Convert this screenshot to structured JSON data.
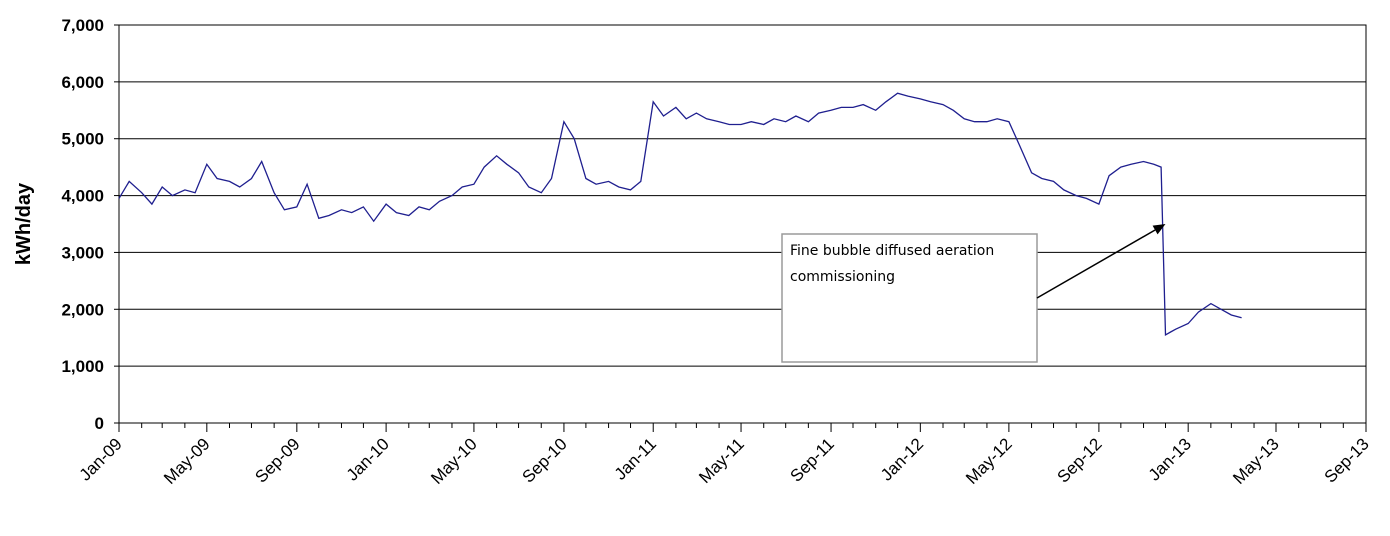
{
  "chart_data": {
    "type": "line",
    "title": "",
    "xlabel": "",
    "ylabel": "kWh/day",
    "ylim": [
      0,
      7000
    ],
    "xlim": [
      "2009-01-01",
      "2013-09-01"
    ],
    "y_ticks": [
      0,
      1000,
      2000,
      3000,
      4000,
      5000,
      6000,
      7000
    ],
    "y_tick_labels": [
      "0",
      "1,000",
      "2,000",
      "3,000",
      "4,000",
      "5,000",
      "6,000",
      "7,000"
    ],
    "x_ticks": [
      "2009-01-01",
      "2009-05-01",
      "2009-09-01",
      "2010-01-01",
      "2010-05-01",
      "2010-09-01",
      "2011-01-01",
      "2011-05-01",
      "2011-09-01",
      "2012-01-01",
      "2012-05-01",
      "2012-09-01",
      "2013-01-01",
      "2013-05-01",
      "2013-09-01"
    ],
    "x_tick_labels": [
      "Jan-09",
      "May-09",
      "Sep-09",
      "Jan-10",
      "May-10",
      "Sep-10",
      "Jan-11",
      "May-11",
      "Sep-11",
      "Jan-12",
      "May-12",
      "Sep-12",
      "Jan-13",
      "May-13",
      "Sep-13"
    ],
    "grid": "horizontal",
    "line_color": "#1f1f8f",
    "annotation": {
      "text_lines": [
        "Fine bubble diffused aeration",
        "commissioning"
      ],
      "arrow_target": {
        "x": "2012-12-01",
        "y": 3500
      }
    },
    "series": [
      {
        "x": [
          "2009-01-01",
          "2009-01-15",
          "2009-02-01",
          "2009-02-15",
          "2009-03-01",
          "2009-03-15",
          "2009-04-01",
          "2009-04-15",
          "2009-05-01",
          "2009-05-15",
          "2009-06-01",
          "2009-06-15",
          "2009-07-01",
          "2009-07-15",
          "2009-08-01",
          "2009-08-15",
          "2009-09-01",
          "2009-09-15",
          "2009-10-01",
          "2009-10-15",
          "2009-11-01",
          "2009-11-15",
          "2009-12-01",
          "2009-12-15",
          "2010-01-01",
          "2010-01-15",
          "2010-02-01",
          "2010-02-15",
          "2010-03-01",
          "2010-03-15",
          "2010-04-01",
          "2010-04-15",
          "2010-05-01",
          "2010-05-15",
          "2010-06-01",
          "2010-06-15",
          "2010-07-01",
          "2010-07-15",
          "2010-08-01",
          "2010-08-15",
          "2010-09-01",
          "2010-09-15",
          "2010-10-01",
          "2010-10-15",
          "2010-11-01",
          "2010-11-15",
          "2010-12-01",
          "2010-12-15",
          "2011-01-01",
          "2011-01-15",
          "2011-02-01",
          "2011-02-15",
          "2011-03-01",
          "2011-03-15",
          "2011-04-01",
          "2011-04-15",
          "2011-05-01",
          "2011-05-15",
          "2011-06-01",
          "2011-06-15",
          "2011-07-01",
          "2011-07-15",
          "2011-08-01",
          "2011-08-15",
          "2011-09-01",
          "2011-09-15",
          "2011-10-01",
          "2011-10-15",
          "2011-11-01",
          "2011-11-15",
          "2011-12-01",
          "2011-12-15",
          "2012-01-01",
          "2012-01-15",
          "2012-02-01",
          "2012-02-15",
          "2012-03-01",
          "2012-03-15",
          "2012-04-01",
          "2012-04-15",
          "2012-05-01",
          "2012-05-15",
          "2012-06-01",
          "2012-06-15",
          "2012-07-01",
          "2012-07-15",
          "2012-08-01",
          "2012-08-15",
          "2012-09-01",
          "2012-09-15",
          "2012-10-01",
          "2012-10-15",
          "2012-11-01",
          "2012-11-15",
          "2012-11-25",
          "2012-12-01",
          "2012-12-08",
          "2012-12-15",
          "2013-01-01",
          "2013-01-15",
          "2013-02-01",
          "2013-02-15",
          "2013-03-01",
          "2013-03-15"
        ],
        "y": [
          3950,
          4250,
          4050,
          3850,
          4150,
          4000,
          4100,
          4050,
          4550,
          4300,
          4250,
          4150,
          4300,
          4600,
          4050,
          3750,
          3800,
          4200,
          3600,
          3650,
          3750,
          3700,
          3800,
          3550,
          3850,
          3700,
          3650,
          3800,
          3750,
          3900,
          4000,
          4150,
          4200,
          4500,
          4700,
          4550,
          4400,
          4150,
          4050,
          4300,
          5300,
          5000,
          4300,
          4200,
          4250,
          4150,
          4100,
          4250,
          5650,
          5400,
          5550,
          5350,
          5450,
          5350,
          5300,
          5250,
          5250,
          5300,
          5250,
          5350,
          5300,
          5400,
          5300,
          5450,
          5500,
          5550,
          5550,
          5600,
          5500,
          5650,
          5800,
          5750,
          5700,
          5650,
          5600,
          5500,
          5350,
          5300,
          5300,
          5350,
          5300,
          4900,
          4400,
          4300,
          4250,
          4100,
          4000,
          3950,
          3850,
          4350,
          4500,
          4550,
          4600,
          4550,
          4500,
          1550,
          1600,
          1650,
          1750,
          1950,
          2100,
          2000,
          1900,
          1850
        ]
      }
    ]
  }
}
